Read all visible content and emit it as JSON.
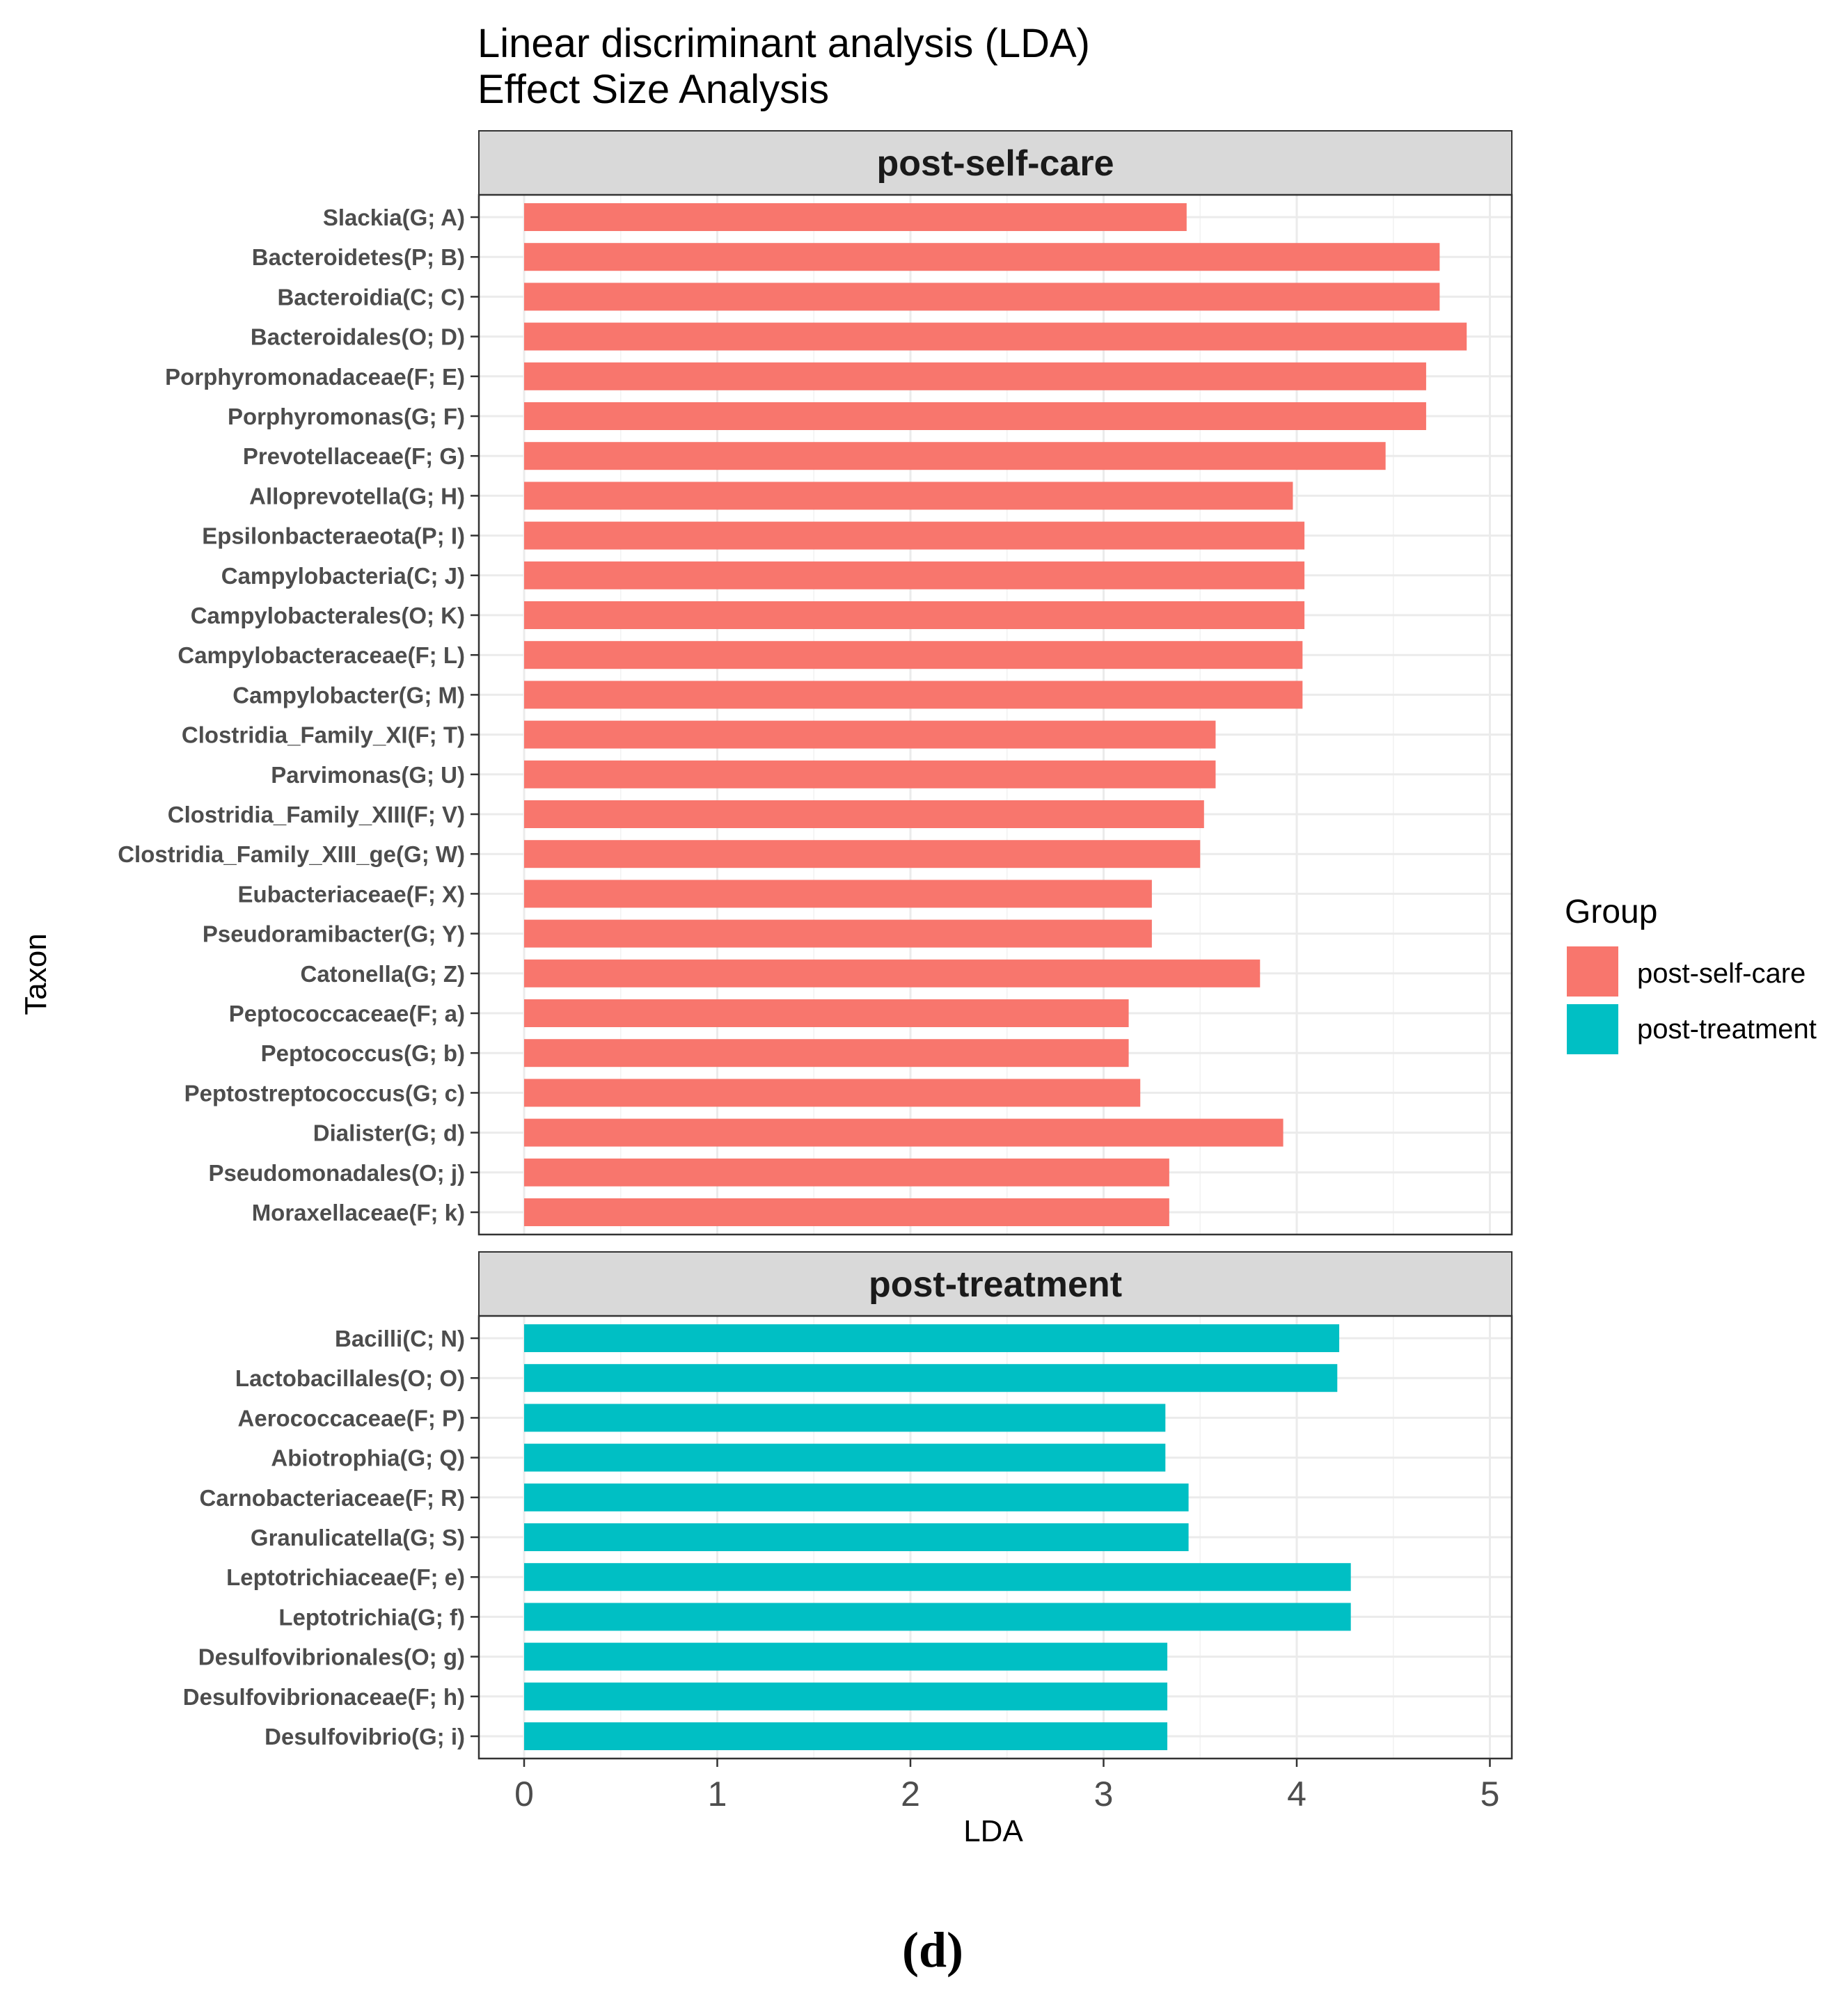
{
  "chart_data": {
    "type": "bar",
    "orientation": "horizontal",
    "title": "Linear discriminant analysis (LDA)",
    "subtitle": "Effect Size Analysis",
    "xlabel": "LDA",
    "ylabel": "Taxon",
    "xlim": [
      0,
      5
    ],
    "xticks": [
      "0",
      "1",
      "2",
      "3",
      "4",
      "5"
    ],
    "grid": true,
    "legend": {
      "title": "Group",
      "position": "right",
      "items": [
        {
          "label": "post-self-care",
          "color": "#F8766D"
        },
        {
          "label": "post-treatment",
          "color": "#00BFC4"
        }
      ]
    },
    "panels": [
      {
        "name": "post-self-care",
        "color": "#F8766D",
        "categories": [
          "Slackia(G; A)",
          "Bacteroidetes(P; B)",
          "Bacteroidia(C; C)",
          "Bacteroidales(O; D)",
          "Porphyromonadaceae(F; E)",
          "Porphyromonas(G; F)",
          "Prevotellaceae(F; G)",
          "Alloprevotella(G; H)",
          "Epsilonbacteraeota(P; I)",
          "Campylobacteria(C; J)",
          "Campylobacterales(O; K)",
          "Campylobacteraceae(F; L)",
          "Campylobacter(G; M)",
          "Clostridia_Family_XI(F; T)",
          "Parvimonas(G; U)",
          "Clostridia_Family_XIII(F; V)",
          "Clostridia_Family_XIII_ge(G; W)",
          "Eubacteriaceae(F; X)",
          "Pseudoramibacter(G; Y)",
          "Catonella(G; Z)",
          "Peptococcaceae(F; a)",
          "Peptococcus(G; b)",
          "Peptostreptococcus(G; c)",
          "Dialister(G; d)",
          "Pseudomonadales(O; j)",
          "Moraxellaceae(F; k)"
        ],
        "values": [
          3.43,
          4.74,
          4.74,
          4.88,
          4.67,
          4.67,
          4.46,
          3.98,
          4.04,
          4.04,
          4.04,
          4.03,
          4.03,
          3.58,
          3.58,
          3.52,
          3.5,
          3.25,
          3.25,
          3.81,
          3.13,
          3.13,
          3.19,
          3.93,
          3.34,
          3.34
        ]
      },
      {
        "name": "post-treatment",
        "color": "#00BFC4",
        "categories": [
          "Bacilli(C; N)",
          "Lactobacillales(O; O)",
          "Aerococcaceae(F; P)",
          "Abiotrophia(G; Q)",
          "Carnobacteriaceae(F; R)",
          "Granulicatella(G; S)",
          "Leptotrichiaceae(F; e)",
          "Leptotrichia(G; f)",
          "Desulfovibrionales(O; g)",
          "Desulfovibrionaceae(F; h)",
          "Desulfovibrio(G; i)"
        ],
        "values": [
          4.22,
          4.21,
          3.32,
          3.32,
          3.44,
          3.44,
          4.28,
          4.28,
          3.33,
          3.33,
          3.33
        ]
      }
    ]
  },
  "caption": "(d)"
}
